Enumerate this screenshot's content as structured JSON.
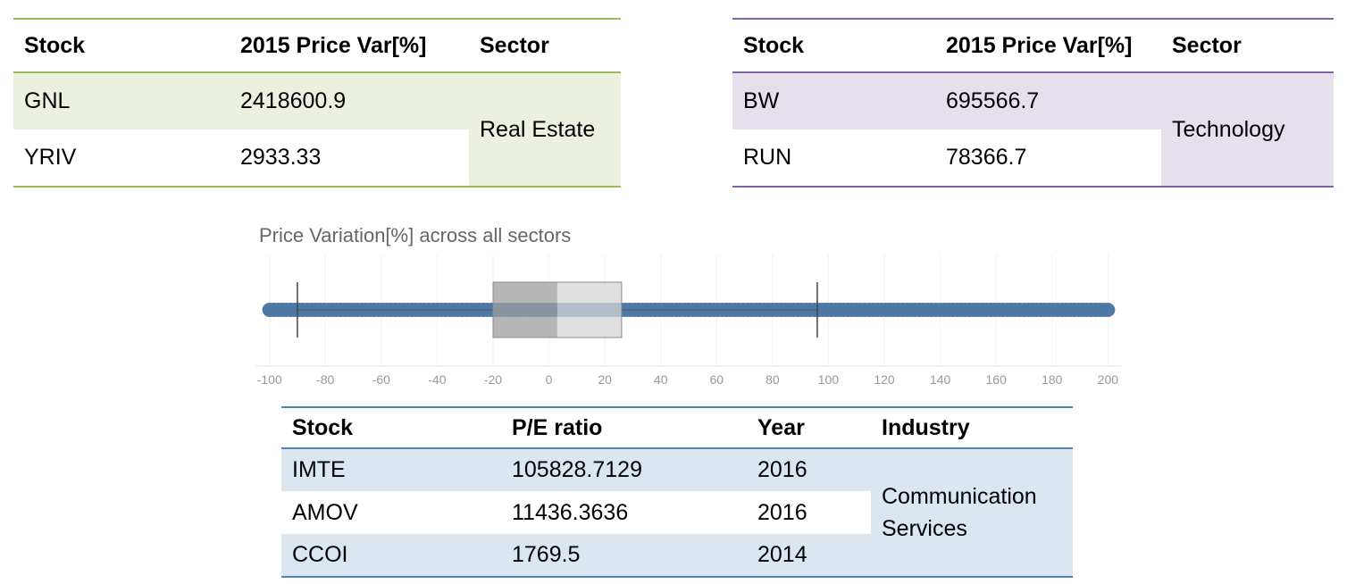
{
  "table_real_estate": {
    "headers": {
      "stock": "Stock",
      "var": "2015 Price Var[%]",
      "sector": "Sector"
    },
    "rows": [
      {
        "stock": "GNL",
        "var": "2418600.9"
      },
      {
        "stock": "YRIV",
        "var": "2933.33"
      }
    ],
    "sector": "Real Estate",
    "accent": "#9bbb59"
  },
  "table_technology": {
    "headers": {
      "stock": "Stock",
      "var": "2015 Price Var[%]",
      "sector": "Sector"
    },
    "rows": [
      {
        "stock": "BW",
        "var": "695566.7"
      },
      {
        "stock": "RUN",
        "var": "78366.7"
      }
    ],
    "sector": "Technology",
    "accent": "#8064a2"
  },
  "table_pe": {
    "headers": {
      "stock": "Stock",
      "pe": "P/E ratio",
      "year": "Year",
      "industry": "Industry"
    },
    "rows": [
      {
        "stock": "IMTE",
        "pe": "105828.7129",
        "year": "2016"
      },
      {
        "stock": "AMOV",
        "pe": "11436.3636",
        "year": "2016"
      },
      {
        "stock": "CCOI",
        "pe": "1769.5",
        "year": "2014"
      }
    ],
    "industry_line1": "Communication",
    "industry_line2": "Services",
    "accent": "#4f81bd"
  },
  "chart_data": {
    "type": "boxplot",
    "title": "Price Variation[%] across all sectors",
    "xlabel": "",
    "ylabel": "",
    "xlim": [
      -105,
      205
    ],
    "ticks": [
      -100,
      -80,
      -60,
      -40,
      -20,
      0,
      20,
      40,
      60,
      80,
      100,
      120,
      140,
      160,
      180,
      200
    ],
    "points_range": [
      -100,
      200
    ],
    "whisker_low": -90,
    "q1": -20,
    "median": 3,
    "q3": 26,
    "whisker_high": 96,
    "point_color": "#4e79a7",
    "grid": true
  }
}
